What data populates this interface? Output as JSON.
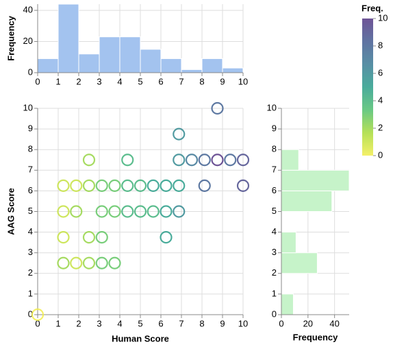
{
  "chart_data": [
    {
      "type": "histogram",
      "ylabel": "Frequency",
      "bins": [
        0,
        1,
        2,
        3,
        4,
        5,
        6,
        7,
        8,
        9,
        10
      ],
      "counts": [
        9,
        44,
        12,
        23,
        23,
        15,
        9,
        2,
        9,
        3
      ],
      "color": "#a3c3ef",
      "xlim": [
        0,
        10
      ],
      "xticks": [
        0,
        1,
        2,
        3,
        4,
        5,
        6,
        7,
        8,
        9,
        10
      ],
      "ylim": [
        0,
        44
      ],
      "yticks": [
        0,
        20,
        40
      ],
      "grid": true
    },
    {
      "type": "scatter",
      "xlabel": "Human Score",
      "ylabel": "AAG Score",
      "x": [
        0,
        1.25,
        1.875,
        2.5,
        3.125,
        3.75,
        1.25,
        2.5,
        3.125,
        6.25,
        1.25,
        1.875,
        3.125,
        3.75,
        4.375,
        5,
        5.625,
        6.25,
        6.875,
        1.25,
        1.875,
        2.5,
        3.125,
        3.75,
        4.375,
        5,
        5.625,
        6.25,
        6.875,
        8.125,
        10,
        2.5,
        4.375,
        6.875,
        7.5,
        8.125,
        8.75,
        9.375,
        10,
        6.875,
        8.75
      ],
      "y": [
        0,
        2.5,
        2.5,
        2.5,
        2.5,
        2.5,
        3.75,
        3.75,
        3.75,
        3.75,
        5,
        5,
        5,
        5,
        5,
        5,
        5,
        5,
        5,
        6.25,
        6.25,
        6.25,
        6.25,
        6.25,
        6.25,
        6.25,
        6.25,
        6.25,
        6.25,
        6.25,
        6.25,
        7.5,
        7.5,
        7.5,
        7.5,
        7.5,
        7.5,
        7.5,
        7.5,
        8.75,
        10
      ],
      "freq": [
        0,
        2,
        1,
        2,
        3,
        3,
        1,
        2,
        3,
        5,
        1,
        2,
        3,
        3,
        4,
        4,
        4,
        5,
        6,
        1,
        1,
        2,
        3,
        3,
        4,
        4,
        5,
        5,
        5,
        8,
        9,
        2,
        4,
        6,
        7,
        8,
        10,
        8,
        9,
        6,
        8
      ],
      "xlim": [
        0,
        10
      ],
      "xticks": [
        0,
        1,
        2,
        3,
        4,
        5,
        6,
        7,
        8,
        9,
        10
      ],
      "ylim": [
        0,
        10
      ],
      "yticks": [
        0,
        1,
        2,
        3,
        4,
        5,
        6,
        7,
        8,
        9,
        10
      ],
      "grid": true,
      "legend": {
        "title": "Freq.",
        "domain": [
          0,
          10
        ],
        "ticks": [
          0,
          2,
          4,
          6,
          8,
          10
        ],
        "colors": [
          "#f2ed4e",
          "#a8db3a",
          "#4fbf6f",
          "#2a9d8a",
          "#3a7b95",
          "#445b91",
          "#553684"
        ]
      }
    },
    {
      "type": "histogram-horizontal",
      "xlabel": "Frequency",
      "bins": [
        0,
        1,
        2,
        3,
        4,
        5,
        6,
        7,
        8,
        9,
        10
      ],
      "counts": [
        9,
        0,
        27,
        11,
        0,
        38,
        51,
        13,
        0,
        0
      ],
      "color": "#c6f3c9",
      "xlim": [
        0,
        51
      ],
      "xticks": [
        0,
        20,
        40
      ],
      "ylim": [
        0,
        10
      ],
      "yticks": [
        0,
        1,
        2,
        3,
        4,
        5,
        6,
        7,
        8,
        9,
        10
      ],
      "grid": true
    }
  ]
}
